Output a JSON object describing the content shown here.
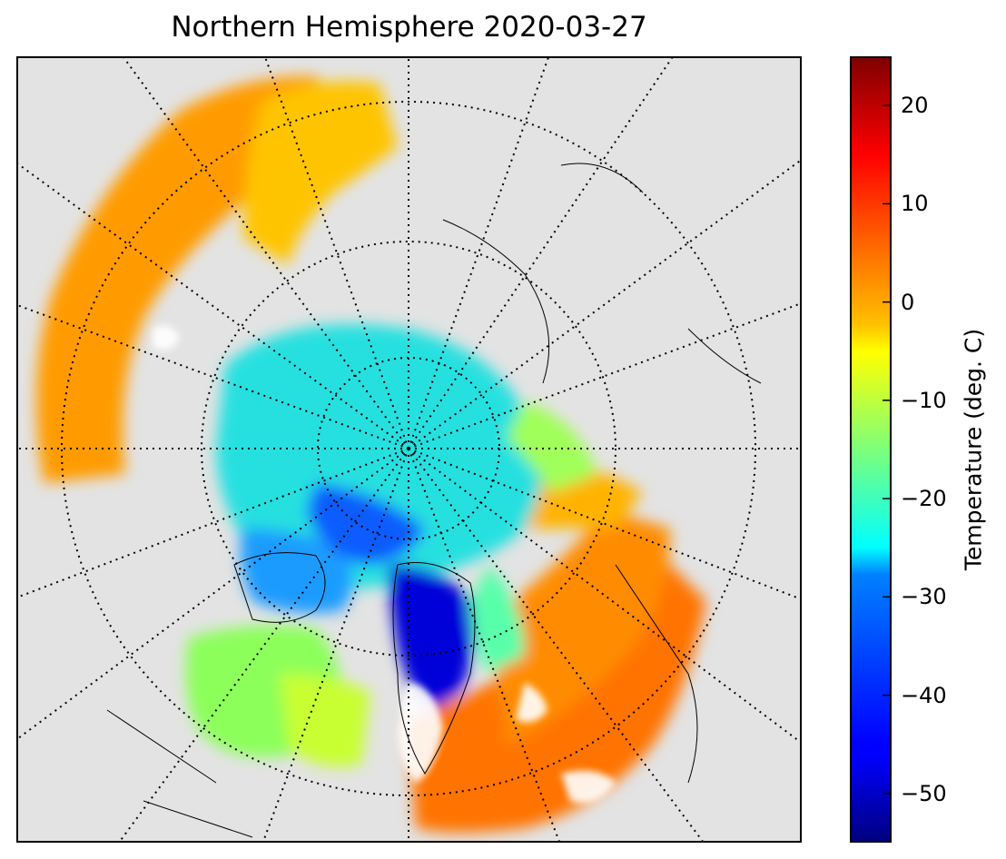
{
  "title": "Northern Hemisphere 2020-03-27",
  "colorbar": {
    "label": "Temperature (deg. C)",
    "min": -55,
    "max": 25,
    "colormap": "jet",
    "ticks": [
      {
        "value": 20,
        "label": "20"
      },
      {
        "value": 10,
        "label": "10"
      },
      {
        "value": 0,
        "label": "0"
      },
      {
        "value": -10,
        "label": "−10"
      },
      {
        "value": -20,
        "label": "−20"
      },
      {
        "value": -30,
        "label": "−30"
      },
      {
        "value": -40,
        "label": "−40"
      },
      {
        "value": -50,
        "label": "−50"
      }
    ]
  },
  "map": {
    "projection": "north-polar-stereographic",
    "background_color": "#e3e3e3",
    "graticule": "dotted",
    "parallels_deg_north": [
      40,
      60,
      80
    ],
    "meridian_spacing_deg": 20
  }
}
